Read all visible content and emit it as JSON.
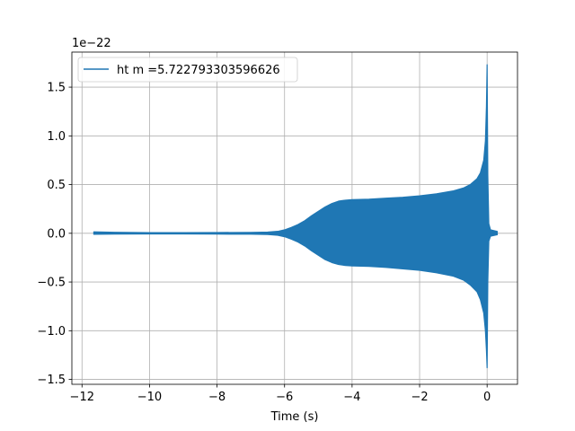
{
  "chart_data": {
    "type": "line",
    "xlabel": "Time (s)",
    "ylabel": "",
    "offset_text": "1e−22",
    "xlim": [
      -12.3,
      0.9
    ],
    "ylim": [
      -1.55,
      1.86
    ],
    "xticks": [
      -12,
      -10,
      -8,
      -6,
      -4,
      -2,
      0
    ],
    "xtick_labels": [
      "−12",
      "−10",
      "−8",
      "−6",
      "−4",
      "−2",
      "0"
    ],
    "yticks": [
      -1.5,
      -1.0,
      -0.5,
      0.0,
      0.5,
      1.0,
      1.5
    ],
    "ytick_labels": [
      "−1.5",
      "−1.0",
      "−0.5",
      "0.0",
      "0.5",
      "1.0",
      "1.5"
    ],
    "grid": true,
    "legend_position": "top-left",
    "series": [
      {
        "name": "ht m =5.722793303596626",
        "color": "#1f77b4",
        "style": "dense oscillation (envelope shown)",
        "envelope_upper": [
          [
            -11.65,
            0.015
          ],
          [
            -11.0,
            0.01
          ],
          [
            -10.0,
            0.007
          ],
          [
            -9.0,
            0.007
          ],
          [
            -8.0,
            0.008
          ],
          [
            -7.0,
            0.009
          ],
          [
            -6.5,
            0.012
          ],
          [
            -6.2,
            0.02
          ],
          [
            -6.0,
            0.035
          ],
          [
            -5.8,
            0.06
          ],
          [
            -5.6,
            0.09
          ],
          [
            -5.4,
            0.13
          ],
          [
            -5.2,
            0.18
          ],
          [
            -5.0,
            0.225
          ],
          [
            -4.8,
            0.27
          ],
          [
            -4.6,
            0.305
          ],
          [
            -4.4,
            0.33
          ],
          [
            -4.2,
            0.34
          ],
          [
            -4.0,
            0.345
          ],
          [
            -3.5,
            0.35
          ],
          [
            -3.0,
            0.36
          ],
          [
            -2.5,
            0.37
          ],
          [
            -2.0,
            0.385
          ],
          [
            -1.5,
            0.405
          ],
          [
            -1.0,
            0.435
          ],
          [
            -0.7,
            0.465
          ],
          [
            -0.5,
            0.5
          ],
          [
            -0.3,
            0.56
          ],
          [
            -0.2,
            0.62
          ],
          [
            -0.1,
            0.75
          ],
          [
            -0.05,
            0.95
          ],
          [
            -0.02,
            1.3
          ],
          [
            0.0,
            1.73
          ],
          [
            0.02,
            0.6
          ],
          [
            0.05,
            0.1
          ],
          [
            0.1,
            0.035
          ],
          [
            0.3,
            0.02
          ]
        ],
        "envelope_lower": [
          [
            -11.65,
            -0.01
          ],
          [
            -11.0,
            -0.008
          ],
          [
            -10.0,
            -0.007
          ],
          [
            -9.0,
            -0.007
          ],
          [
            -8.0,
            -0.008
          ],
          [
            -7.0,
            -0.009
          ],
          [
            -6.5,
            -0.012
          ],
          [
            -6.2,
            -0.02
          ],
          [
            -6.0,
            -0.035
          ],
          [
            -5.8,
            -0.06
          ],
          [
            -5.6,
            -0.09
          ],
          [
            -5.4,
            -0.13
          ],
          [
            -5.2,
            -0.18
          ],
          [
            -5.0,
            -0.225
          ],
          [
            -4.8,
            -0.27
          ],
          [
            -4.6,
            -0.3
          ],
          [
            -4.4,
            -0.32
          ],
          [
            -4.2,
            -0.33
          ],
          [
            -4.0,
            -0.335
          ],
          [
            -3.5,
            -0.34
          ],
          [
            -3.0,
            -0.35
          ],
          [
            -2.5,
            -0.365
          ],
          [
            -2.0,
            -0.38
          ],
          [
            -1.5,
            -0.405
          ],
          [
            -1.0,
            -0.44
          ],
          [
            -0.7,
            -0.48
          ],
          [
            -0.5,
            -0.53
          ],
          [
            -0.3,
            -0.6
          ],
          [
            -0.2,
            -0.68
          ],
          [
            -0.1,
            -0.82
          ],
          [
            -0.05,
            -1.0
          ],
          [
            -0.02,
            -1.2
          ],
          [
            0.0,
            -1.38
          ],
          [
            0.02,
            -0.5
          ],
          [
            0.05,
            -0.08
          ],
          [
            0.1,
            -0.03
          ],
          [
            0.3,
            -0.015
          ]
        ]
      }
    ]
  }
}
